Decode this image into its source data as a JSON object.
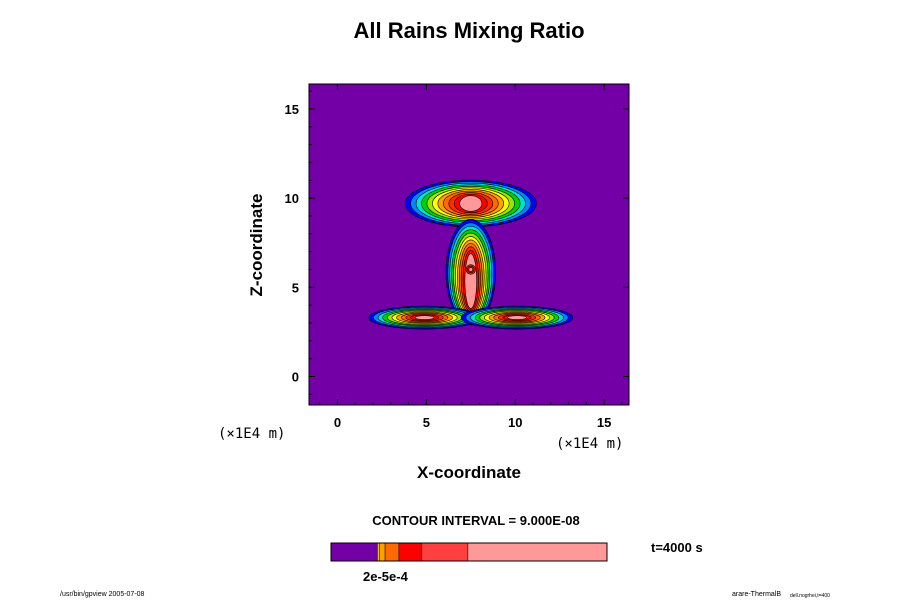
{
  "chart_data": {
    "type": "heatmap",
    "title": "All Rains Mixing Ratio",
    "xlabel": "X-coordinate",
    "ylabel": "Z-coordinate",
    "x_unit": "(×1E4 m)",
    "y_unit": "(×1E4 m)",
    "xlim": [
      -1.6,
      16.4
    ],
    "ylim": [
      -1.6,
      16.4
    ],
    "x_ticks": [
      0,
      5,
      10,
      15
    ],
    "y_ticks": [
      0,
      5,
      10,
      15
    ],
    "contour_interval": "CONTOUR INTERVAL = 9.000E-08",
    "time": "t=4000 s",
    "colorbar_label": "2e-5e-4",
    "colorbar": [
      {
        "color": "#7300a6",
        "width": 0.168
      },
      {
        "color": "#e1c800",
        "width": 0.007
      },
      {
        "color": "#ffa000",
        "width": 0.021
      },
      {
        "color": "#ff6a00",
        "width": 0.05
      },
      {
        "color": "#ff0000",
        "width": 0.083
      },
      {
        "color": "#ff4040",
        "width": 0.167
      },
      {
        "color": "#ff9999",
        "width": 0.504
      }
    ],
    "levels": [
      {
        "color": "#7300a6"
      },
      {
        "color": "#0000ff"
      },
      {
        "color": "#0087ff"
      },
      {
        "color": "#00e1d2"
      },
      {
        "color": "#00d200"
      },
      {
        "color": "#9be600"
      },
      {
        "color": "#ffff00"
      },
      {
        "color": "#ffa000"
      },
      {
        "color": "#ff6a00"
      },
      {
        "color": "#ff2a00"
      },
      {
        "color": "#ff0000"
      },
      {
        "color": "#ff9999"
      }
    ],
    "features": [
      {
        "shape": "cloud-top",
        "cx": 7.5,
        "cy": 9.7,
        "rx": 4.0,
        "ry": 1.4
      },
      {
        "shape": "column",
        "cx": 7.5,
        "cy": 5.9,
        "rx": 1.5,
        "ry": 3.1
      },
      {
        "shape": "anvil-left",
        "cx": 4.9,
        "cy": 3.3,
        "rx": 3.4,
        "ry": 0.7
      },
      {
        "shape": "anvil-right",
        "cx": 10.1,
        "cy": 3.3,
        "rx": 3.4,
        "ry": 0.7
      },
      {
        "shape": "core",
        "cx": 7.5,
        "cy": 6.0,
        "rx": 0.35,
        "ry": 0.35
      }
    ]
  },
  "footer": {
    "left": "/usr/bin/gpview 2005-07-08",
    "right": "arare-ThermalB",
    "right_sub": "dell.nogrhei,t=400"
  }
}
